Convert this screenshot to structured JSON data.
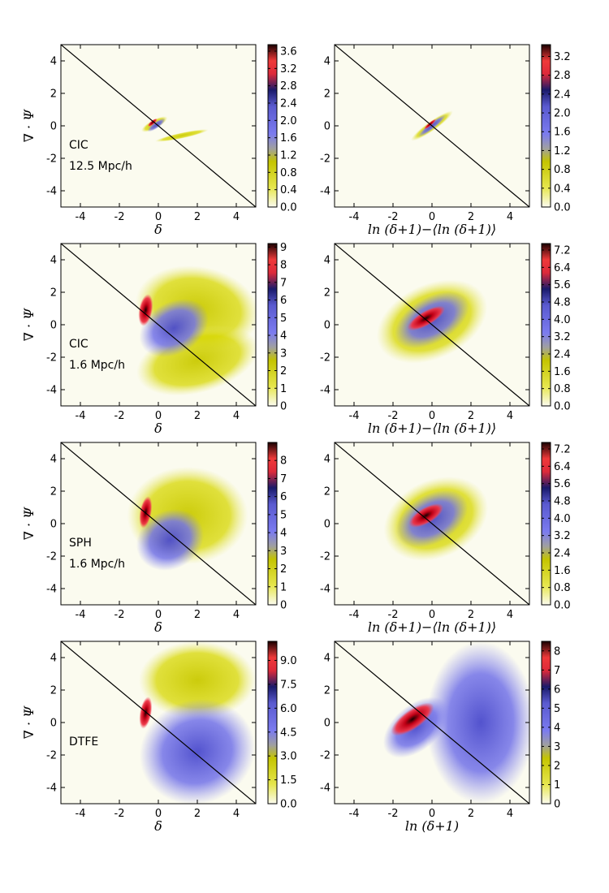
{
  "chart_data": [
    {
      "type": "heatmap",
      "id": "p1",
      "annotation": [
        "CIC",
        "12.5 Mpc/h"
      ],
      "xlabel": "δ",
      "ylabel": "∇ · Ψ",
      "xlim": [
        -5,
        5
      ],
      "ylim": [
        -5,
        5
      ],
      "x_ticks": [
        -4,
        -2,
        0,
        2,
        4
      ],
      "y_ticks": [
        -4,
        -2,
        0,
        2,
        4
      ],
      "colorbar_ticks": [
        "0.0",
        "0.4",
        "0.8",
        "1.2",
        "1.6",
        "2.0",
        "2.4",
        "2.8",
        "3.2",
        "3.6"
      ],
      "colorbar_max": 3.75,
      "reference_line": {
        "slope": -1,
        "intercept": 0
      },
      "blobs": [
        {
          "x": -0.2,
          "y": 0.1,
          "w": 0.75,
          "h": 0.28,
          "rot": -28,
          "level": "yellow"
        },
        {
          "x": 1.2,
          "y": -0.6,
          "w": 1.4,
          "h": 0.18,
          "rot": -12,
          "level": "yellow"
        },
        {
          "x": -0.1,
          "y": 0.05,
          "w": 0.55,
          "h": 0.2,
          "rot": -35,
          "level": "blue"
        },
        {
          "x": -0.3,
          "y": 0.2,
          "w": 0.3,
          "h": 0.12,
          "rot": -40,
          "level": "red"
        }
      ]
    },
    {
      "type": "heatmap",
      "id": "p2",
      "annotation": [],
      "xlabel": "ln (δ+1)−⟨ln (δ+1)⟩",
      "ylabel": "",
      "xlim": [
        -5,
        5
      ],
      "ylim": [
        -5,
        5
      ],
      "x_ticks": [
        -4,
        -2,
        0,
        2,
        4
      ],
      "y_ticks": [
        -4,
        -2,
        0,
        2,
        4
      ],
      "colorbar_ticks": [
        "0.0",
        "0.4",
        "0.8",
        "1.2",
        "1.6",
        "2.0",
        "2.4",
        "2.8",
        "3.2"
      ],
      "colorbar_max": 3.45,
      "reference_line": {
        "slope": -1,
        "intercept": 0
      },
      "blobs": [
        {
          "x": 0.0,
          "y": 0.0,
          "w": 1.3,
          "h": 0.3,
          "rot": -35,
          "level": "yellow"
        },
        {
          "x": 0.0,
          "y": 0.0,
          "w": 0.9,
          "h": 0.2,
          "rot": -38,
          "level": "blue"
        },
        {
          "x": -0.1,
          "y": 0.1,
          "w": 0.4,
          "h": 0.1,
          "rot": -40,
          "level": "red"
        }
      ]
    },
    {
      "type": "heatmap",
      "id": "p3",
      "annotation": [
        "CIC",
        "1.6 Mpc/h"
      ],
      "xlabel": "δ",
      "ylabel": "∇ · Ψ",
      "xlim": [
        -5,
        5
      ],
      "ylim": [
        -5,
        5
      ],
      "x_ticks": [
        -4,
        -2,
        0,
        2,
        4
      ],
      "y_ticks": [
        -4,
        -2,
        0,
        2,
        4
      ],
      "colorbar_ticks": [
        "0",
        "1",
        "2",
        "3",
        "4",
        "5",
        "6",
        "7",
        "8",
        "9"
      ],
      "colorbar_max": 9.2,
      "reference_line": {
        "slope": -1,
        "intercept": 0
      },
      "blobs": [
        {
          "x": 2.0,
          "y": 1.0,
          "w": 3.2,
          "h": 2.6,
          "rot": 10,
          "level": "yellow"
        },
        {
          "x": 2.0,
          "y": -2.2,
          "w": 3.2,
          "h": 2.0,
          "rot": -15,
          "level": "yellow"
        },
        {
          "x": 0.8,
          "y": -0.2,
          "w": 1.9,
          "h": 1.6,
          "rot": -30,
          "level": "blue"
        },
        {
          "x": -0.65,
          "y": 0.9,
          "w": 0.35,
          "h": 1.0,
          "rot": 10,
          "level": "red"
        }
      ]
    },
    {
      "type": "heatmap",
      "id": "p4",
      "annotation": [],
      "xlabel": "ln (δ+1)−⟨ln (δ+1)⟩",
      "ylabel": "",
      "xlim": [
        -5,
        5
      ],
      "ylim": [
        -5,
        5
      ],
      "x_ticks": [
        -4,
        -2,
        0,
        2,
        4
      ],
      "y_ticks": [
        -4,
        -2,
        0,
        2,
        4
      ],
      "colorbar_ticks": [
        "0.0",
        "0.8",
        "1.6",
        "2.4",
        "3.2",
        "4.0",
        "4.8",
        "5.6",
        "6.4",
        "7.2"
      ],
      "colorbar_max": 7.5,
      "reference_line": {
        "slope": -1,
        "intercept": 0
      },
      "blobs": [
        {
          "x": 0.0,
          "y": 0.2,
          "w": 3.0,
          "h": 2.3,
          "rot": -25,
          "level": "yellow"
        },
        {
          "x": 0.0,
          "y": 0.3,
          "w": 2.1,
          "h": 1.4,
          "rot": -30,
          "level": "blue"
        },
        {
          "x": -0.3,
          "y": 0.4,
          "w": 1.1,
          "h": 0.45,
          "rot": -30,
          "level": "red"
        }
      ]
    },
    {
      "type": "heatmap",
      "id": "p5",
      "annotation": [
        "SPH",
        "1.6 Mpc/h"
      ],
      "xlabel": "δ",
      "ylabel": "∇ · Ψ",
      "xlim": [
        -5,
        5
      ],
      "ylim": [
        -5,
        5
      ],
      "x_ticks": [
        -4,
        -2,
        0,
        2,
        4
      ],
      "y_ticks": [
        -4,
        -2,
        0,
        2,
        4
      ],
      "colorbar_ticks": [
        "0",
        "1",
        "2",
        "3",
        "4",
        "5",
        "6",
        "7",
        "8"
      ],
      "colorbar_max": 9.0,
      "reference_line": {
        "slope": -1,
        "intercept": 0
      },
      "blobs": [
        {
          "x": 1.5,
          "y": 0.5,
          "w": 3.1,
          "h": 3.0,
          "rot": 0,
          "level": "yellow"
        },
        {
          "x": 0.6,
          "y": -1.0,
          "w": 1.8,
          "h": 1.8,
          "rot": -30,
          "level": "blue"
        },
        {
          "x": -0.65,
          "y": 0.7,
          "w": 0.3,
          "h": 1.0,
          "rot": 10,
          "level": "red"
        }
      ]
    },
    {
      "type": "heatmap",
      "id": "p6",
      "annotation": [],
      "xlabel": "ln (δ+1)−⟨ln (δ+1)⟩",
      "ylabel": "",
      "xlim": [
        -5,
        5
      ],
      "ylim": [
        -5,
        5
      ],
      "x_ticks": [
        -4,
        -2,
        0,
        2,
        4
      ],
      "y_ticks": [
        -4,
        -2,
        0,
        2,
        4
      ],
      "colorbar_ticks": [
        "0.0",
        "0.8",
        "1.6",
        "2.4",
        "3.2",
        "4.0",
        "4.8",
        "5.6",
        "6.4",
        "7.2"
      ],
      "colorbar_max": 7.5,
      "reference_line": {
        "slope": -1,
        "intercept": 0
      },
      "blobs": [
        {
          "x": 0.2,
          "y": 0.3,
          "w": 2.8,
          "h": 2.4,
          "rot": -25,
          "level": "yellow"
        },
        {
          "x": 0.0,
          "y": 0.3,
          "w": 2.0,
          "h": 1.5,
          "rot": -30,
          "level": "blue"
        },
        {
          "x": -0.3,
          "y": 0.5,
          "w": 1.0,
          "h": 0.5,
          "rot": -30,
          "level": "red"
        }
      ]
    },
    {
      "type": "heatmap",
      "id": "p7",
      "annotation": [
        "DTFE"
      ],
      "xlabel": "δ",
      "ylabel": "∇ · Ψ",
      "xlim": [
        -5,
        5
      ],
      "ylim": [
        -5,
        5
      ],
      "x_ticks": [
        -4,
        -2,
        0,
        2,
        4
      ],
      "y_ticks": [
        -4,
        -2,
        0,
        2,
        4
      ],
      "colorbar_ticks": [
        "0.0",
        "1.5",
        "3.0",
        "4.5",
        "6.0",
        "7.5",
        "9.0"
      ],
      "colorbar_max": 10.2,
      "reference_line": {
        "slope": -1,
        "intercept": 0
      },
      "blobs": [
        {
          "x": 2.0,
          "y": 2.6,
          "w": 3.0,
          "h": 2.4,
          "rot": 0,
          "level": "yellow"
        },
        {
          "x": 2.0,
          "y": -1.8,
          "w": 3.0,
          "h": 3.2,
          "rot": -20,
          "level": "blue"
        },
        {
          "x": -0.65,
          "y": 0.6,
          "w": 0.3,
          "h": 1.0,
          "rot": 10,
          "level": "red"
        }
      ]
    },
    {
      "type": "heatmap",
      "id": "p8",
      "annotation": [],
      "xlabel": "ln (δ+1)",
      "ylabel": "",
      "xlim": [
        -5,
        5
      ],
      "ylim": [
        -5,
        5
      ],
      "x_ticks": [
        -4,
        -2,
        0,
        2,
        4
      ],
      "y_ticks": [
        -4,
        -2,
        0,
        2,
        4
      ],
      "colorbar_ticks": [
        "0",
        "1",
        "2",
        "3",
        "4",
        "5",
        "6",
        "7",
        "8"
      ],
      "colorbar_max": 8.5,
      "reference_line": {
        "slope": -1,
        "intercept": 0
      },
      "blobs": [
        {
          "x": 2.5,
          "y": 0.0,
          "w": 2.8,
          "h": 5.0,
          "rot": 0,
          "level": "blue"
        },
        {
          "x": -0.8,
          "y": -0.3,
          "w": 2.0,
          "h": 1.4,
          "rot": -40,
          "level": "blue"
        },
        {
          "x": -1.0,
          "y": 0.2,
          "w": 1.3,
          "h": 0.6,
          "rot": -35,
          "level": "red"
        }
      ]
    }
  ]
}
